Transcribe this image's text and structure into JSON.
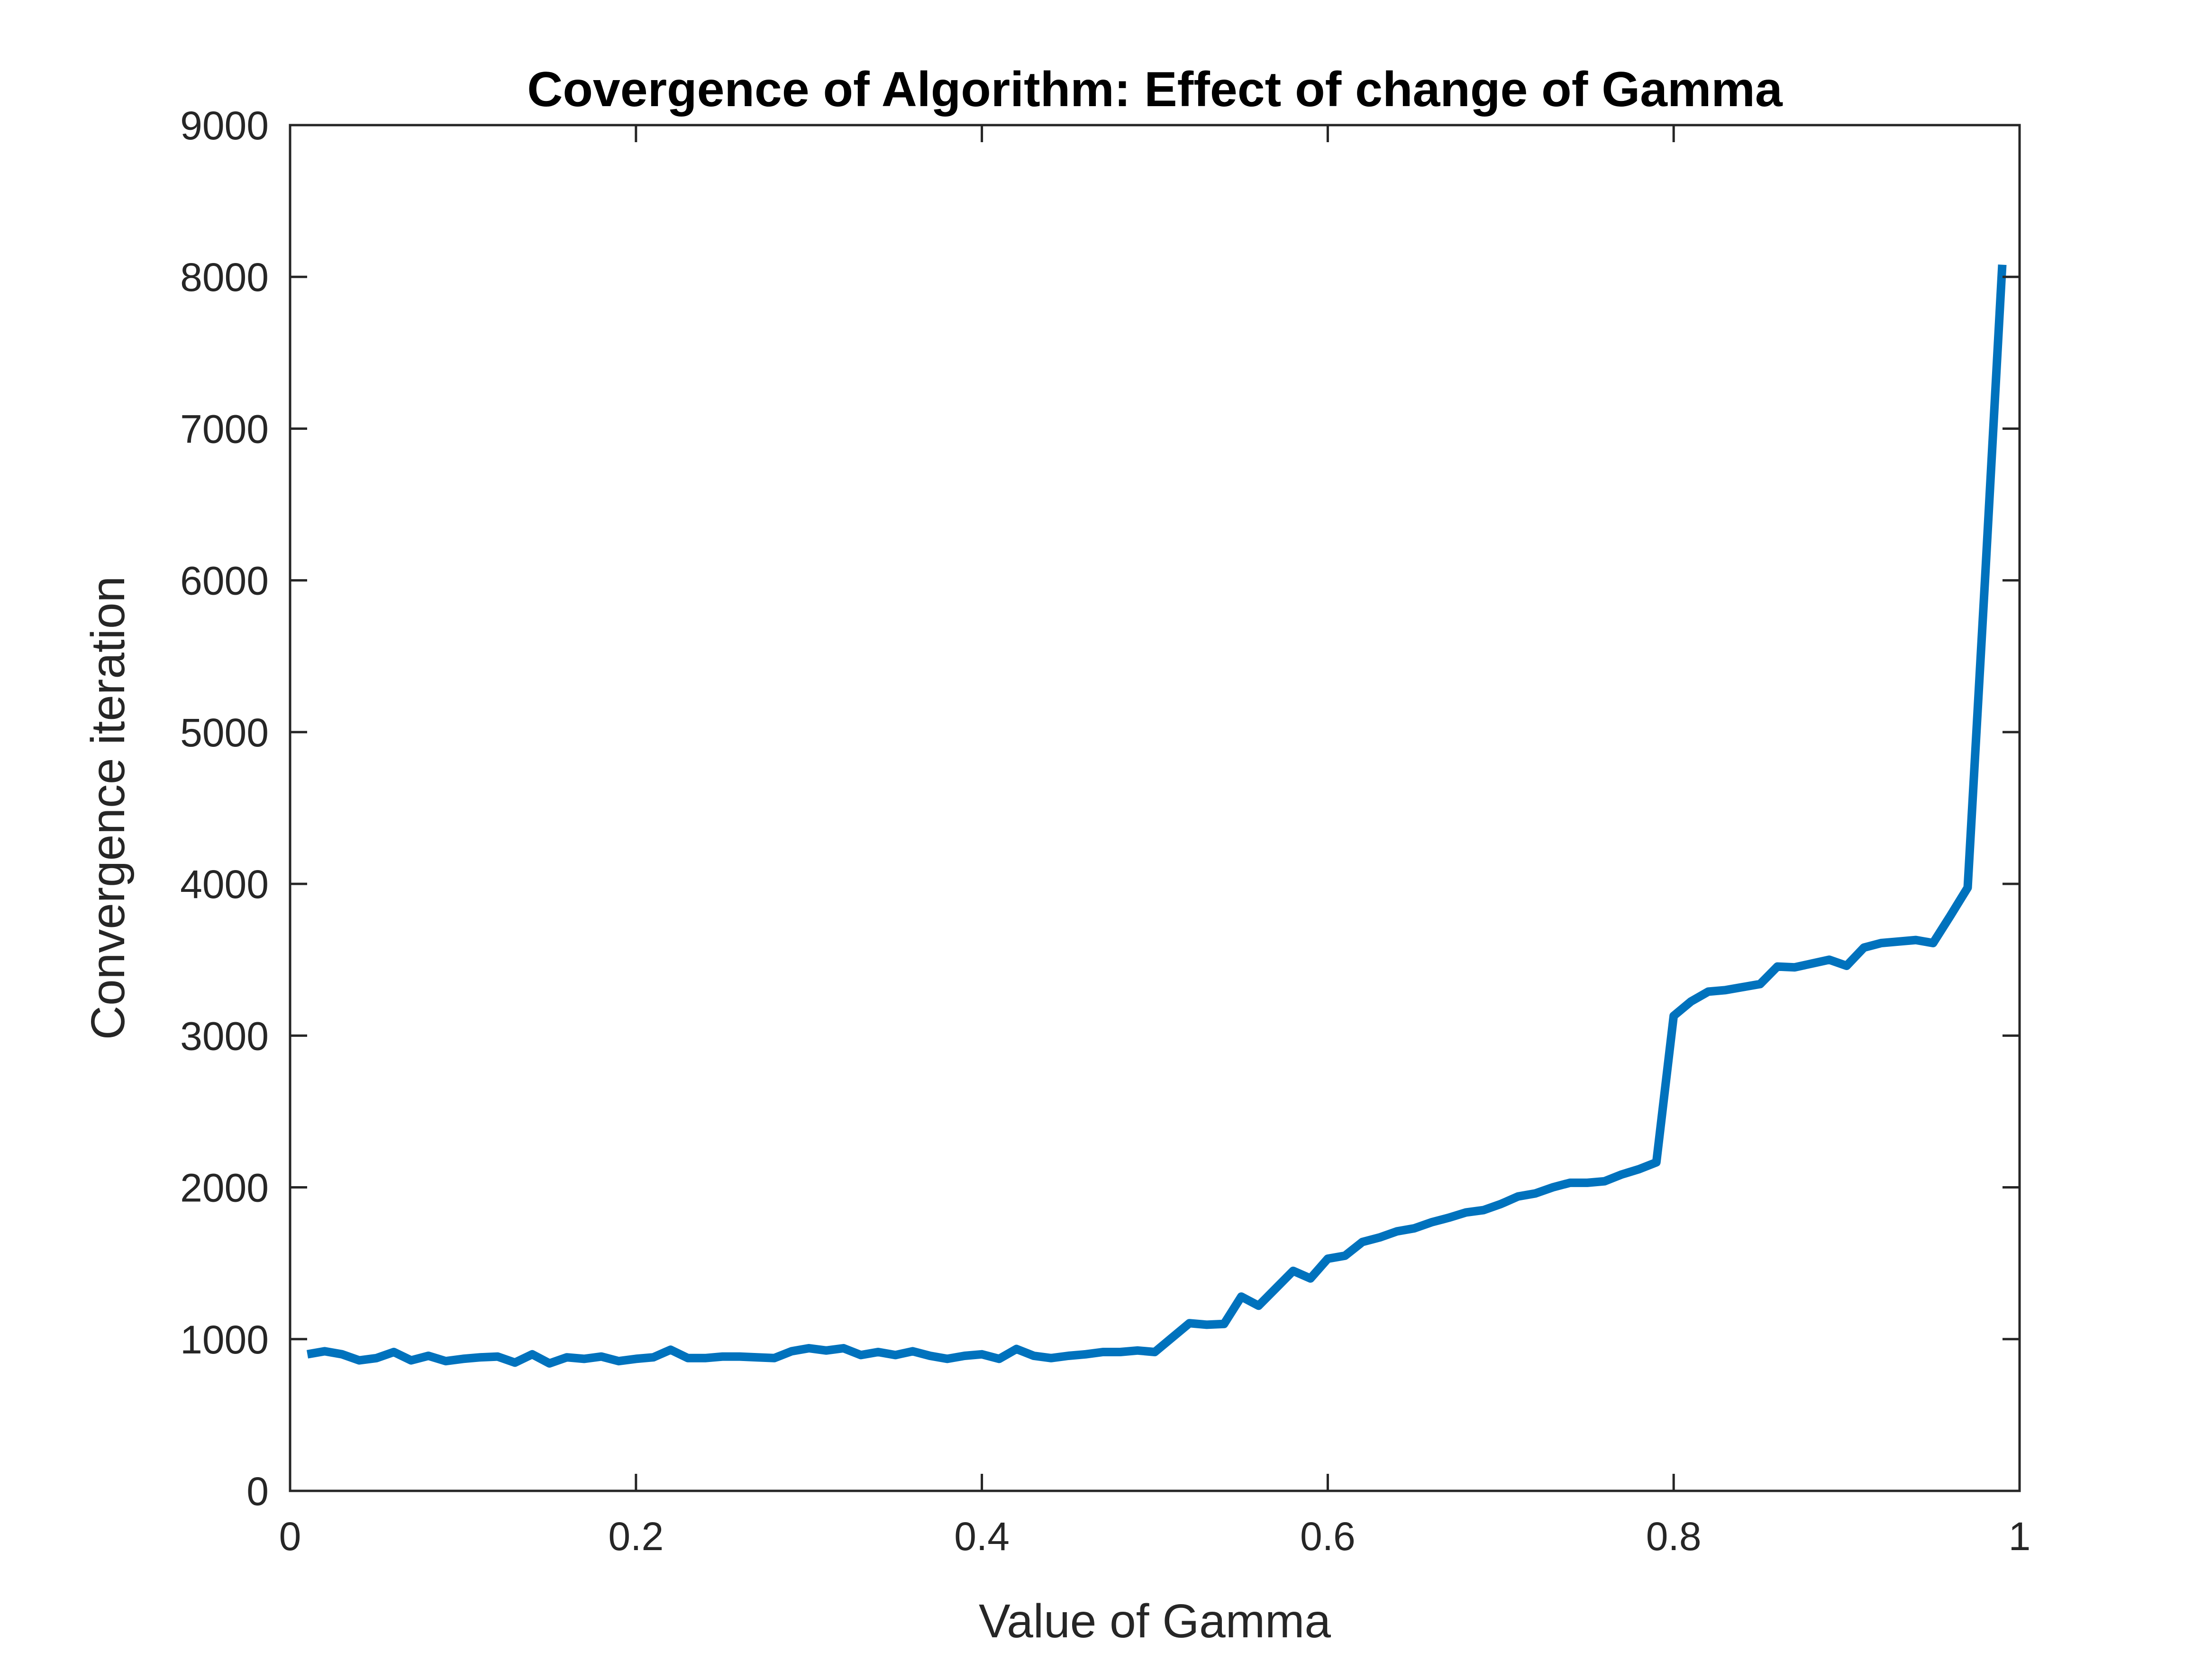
{
  "chart_data": {
    "type": "line",
    "title": "Covergence of Algorithm: Effect of change of Gamma",
    "xlabel": "Value of Gamma",
    "ylabel": "Convergence iteration",
    "xlim": [
      0,
      1
    ],
    "ylim": [
      0,
      9000
    ],
    "xticks": [
      0,
      0.2,
      0.4,
      0.6,
      0.8,
      1
    ],
    "xtick_labels": [
      "0",
      "0.2",
      "0.4",
      "0.6",
      "0.8",
      "1"
    ],
    "yticks": [
      0,
      1000,
      2000,
      3000,
      4000,
      5000,
      6000,
      7000,
      8000,
      9000
    ],
    "ytick_labels": [
      "0",
      "1000",
      "2000",
      "3000",
      "4000",
      "5000",
      "6000",
      "7000",
      "8000",
      "9000"
    ],
    "grid": false,
    "line_color": "#0072BD",
    "series": [
      {
        "x": [
          0.01,
          0.02,
          0.03,
          0.04,
          0.05,
          0.06,
          0.07,
          0.08,
          0.09,
          0.1,
          0.11,
          0.12,
          0.13,
          0.14,
          0.15,
          0.16,
          0.17,
          0.18,
          0.19,
          0.2,
          0.21,
          0.22,
          0.23,
          0.24,
          0.25,
          0.26,
          0.27,
          0.28,
          0.29,
          0.3,
          0.31,
          0.32,
          0.33,
          0.34,
          0.35,
          0.36,
          0.37,
          0.38,
          0.39,
          0.4,
          0.41,
          0.42,
          0.43,
          0.44,
          0.45,
          0.46,
          0.47,
          0.48,
          0.49,
          0.5,
          0.51,
          0.52,
          0.53,
          0.54,
          0.55,
          0.56,
          0.57,
          0.58,
          0.59,
          0.6,
          0.61,
          0.62,
          0.63,
          0.64,
          0.65,
          0.66,
          0.67,
          0.68,
          0.69,
          0.7,
          0.71,
          0.72,
          0.73,
          0.74,
          0.75,
          0.76,
          0.77,
          0.78,
          0.79,
          0.8,
          0.81,
          0.82,
          0.83,
          0.84,
          0.85,
          0.86,
          0.87,
          0.88,
          0.89,
          0.9,
          0.91,
          0.92,
          0.93,
          0.94,
          0.95,
          0.96,
          0.97,
          0.98,
          0.99
        ],
        "y": [
          900,
          920,
          900,
          860,
          875,
          915,
          860,
          890,
          855,
          870,
          880,
          885,
          845,
          900,
          840,
          880,
          870,
          885,
          855,
          870,
          880,
          930,
          875,
          875,
          885,
          885,
          880,
          875,
          920,
          940,
          925,
          940,
          895,
          915,
          895,
          920,
          890,
          870,
          890,
          900,
          870,
          935,
          890,
          875,
          890,
          900,
          915,
          915,
          925,
          915,
          1010,
          1105,
          1095,
          1100,
          1280,
          1220,
          1335,
          1450,
          1400,
          1530,
          1550,
          1640,
          1670,
          1710,
          1730,
          1770,
          1800,
          1835,
          1850,
          1890,
          1940,
          1960,
          2000,
          2030,
          2030,
          2040,
          2085,
          2120,
          2165,
          3130,
          3225,
          3290,
          3300,
          3320,
          3340,
          3455,
          3450,
          3475,
          3500,
          3460,
          3580,
          3610,
          3620,
          3630,
          3610,
          3790,
          3975,
          6000,
          8080
        ]
      }
    ]
  }
}
